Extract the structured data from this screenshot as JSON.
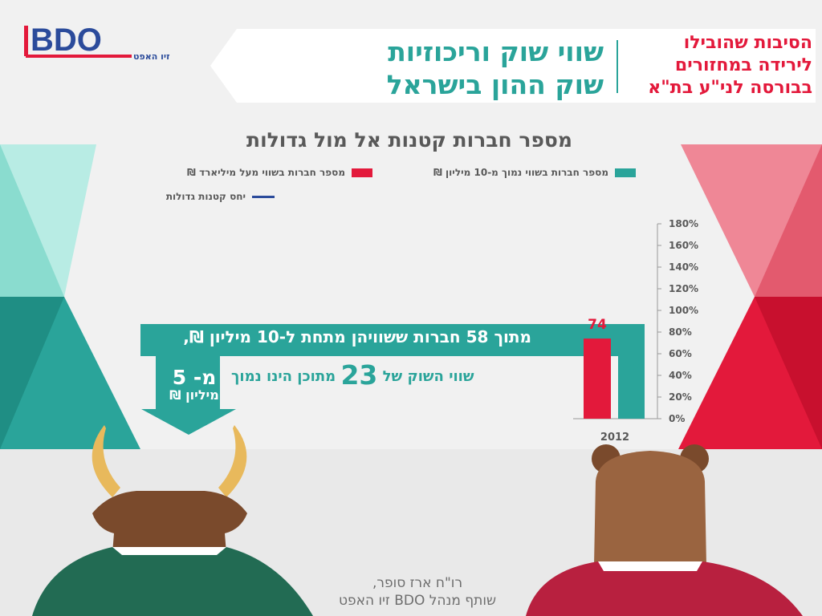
{
  "logo": {
    "brand": "BDO",
    "subtitle": "זיו האפט"
  },
  "header": {
    "title_line1": "שווי שוק וריכוזיות",
    "title_line2": "שוק ההון בישראל",
    "side_line1": "הסיבות שהובילו",
    "side_line2": "לירידה במחזורים",
    "side_line3": "בבורסה לני\"ע בת\"א"
  },
  "chart_data": {
    "type": "bar",
    "title": "מספר חברות קטנות אל מול גדולות",
    "categories": [
      "2012"
    ],
    "series": [
      {
        "name": "מספר חברות בשווי מעל מיליארד ₪",
        "values": [
          74
        ],
        "color": "#e3193b"
      },
      {
        "name": "מספר חברות בשווי נמוך מ-10 מיליון ₪",
        "values": [
          58
        ],
        "color": "#2aa49a"
      }
    ],
    "line_series": {
      "name": "יחס קטנות גדולות",
      "color": "#2b4b9b"
    },
    "y_axis": {
      "position": "right",
      "ylim": [
        0,
        180
      ],
      "ticks": [
        "0%",
        "20%",
        "40%",
        "60%",
        "80%",
        "100%",
        "120%",
        "140%",
        "160%",
        "180%"
      ]
    },
    "legend_placement": "top"
  },
  "callout": {
    "band_text": "מתוך 58 חברות ששוויהן מתחת ל-10 מיליון ₪,",
    "arrow_line1": "מ- 5",
    "arrow_line2": "מיליון ₪",
    "teal_prefix": "שווי השוק של",
    "teal_number": "23",
    "teal_suffix": "מתוכן הינו נמוך"
  },
  "credit": {
    "line1": "רו\"ח ארז סופר,",
    "line2": "שותף מנהל BDO זיו האפט"
  },
  "colors": {
    "teal": "#2aa49a",
    "red": "#e3193b",
    "navy": "#2b4b9b",
    "gray_text": "#595959"
  }
}
